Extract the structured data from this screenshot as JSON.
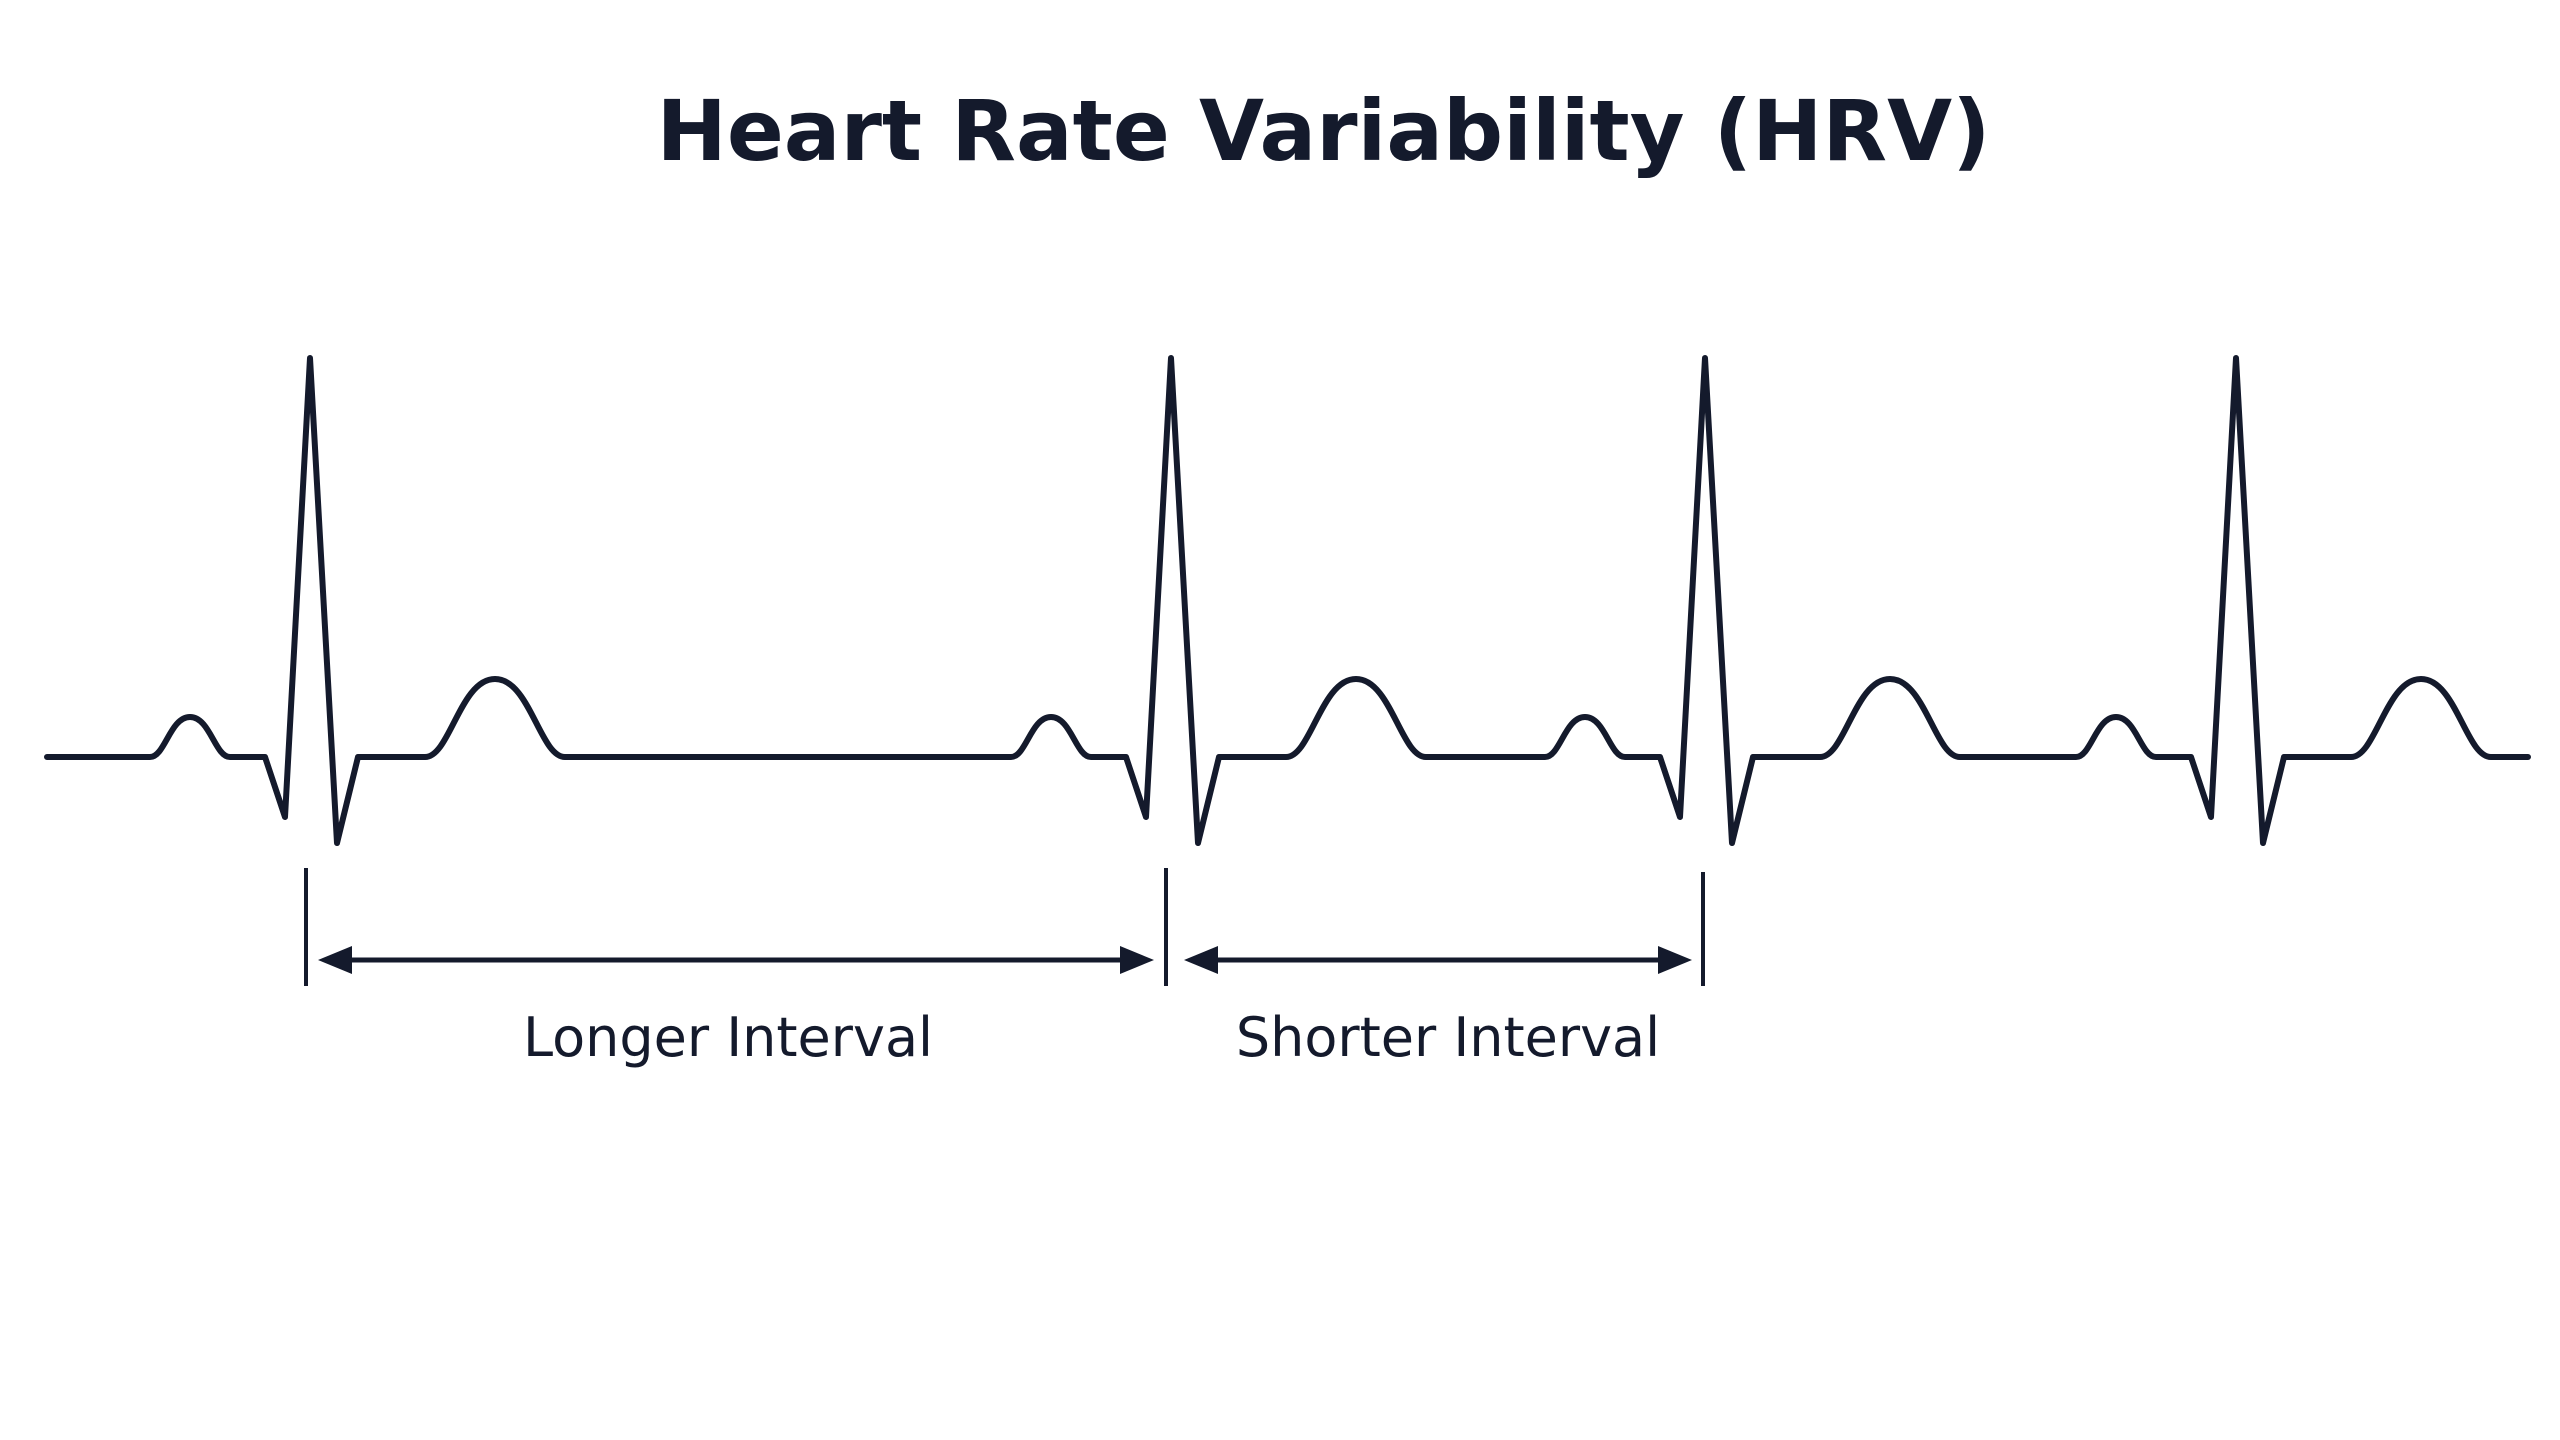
{
  "title": "Heart Rate Variability (HRV)",
  "intervals": [
    {
      "label": "Longer Interval",
      "from_beat": 1,
      "to_beat": 2
    },
    {
      "label": "Shorter Interval",
      "from_beat": 2,
      "to_beat": 3
    }
  ],
  "waveform": {
    "beat_count": 4,
    "stroke_color": "#141a2c"
  },
  "colors": {
    "ink": "#141a2c",
    "background": "#ffffff"
  }
}
